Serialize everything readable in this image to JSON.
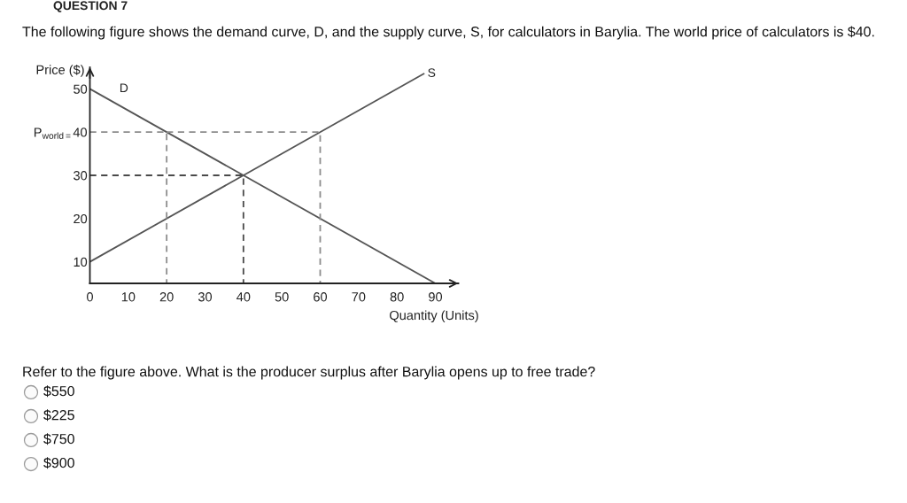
{
  "chart_data": {
    "type": "line",
    "title": "QUESTION 7",
    "subtitle": "The following figure shows the demand curve, D, and the supply curve, S, for calculators in Barylia. The world price of calculators is $40.",
    "xlabel": "Quantity (Units)",
    "ylabel": "Price ($)",
    "series": [
      {
        "name": "D",
        "color": "#555555",
        "x": [
          0,
          90
        ],
        "values": [
          50,
          5
        ]
      },
      {
        "name": "S",
        "color": "#555555",
        "x": [
          0,
          87
        ],
        "values": [
          10,
          53.5
        ]
      },
      {
        "color": "#8c8c8c",
        "line_style": "dashed",
        "x": [
          0,
          20,
          20
        ],
        "values": [
          40,
          40,
          5
        ]
      },
      {
        "color": "#8c8c8c",
        "line_style": "dashed",
        "x": [
          20,
          60,
          60
        ],
        "values": [
          40,
          40,
          5
        ]
      },
      {
        "color": "#4a4a4a",
        "line_style": "dashed",
        "x": [
          0,
          40,
          40
        ],
        "values": [
          30,
          30,
          5
        ]
      }
    ],
    "xlim": [
      0,
      96
    ],
    "ylim": [
      5,
      55
    ],
    "xticks": [
      0,
      10,
      20,
      30,
      40,
      50,
      60,
      70,
      80,
      90
    ],
    "yticks": [
      10,
      20,
      30,
      {
        "value": 40,
        "label": "P$_{world=}$40"
      },
      50
    ],
    "grid": false,
    "line_style": "solid",
    "annotations": [
      "Refer to the figure above. What is the producer surplus after Barylia opens up to free trade?",
      "$550",
      "$225",
      "$750",
      "$900"
    ]
  }
}
